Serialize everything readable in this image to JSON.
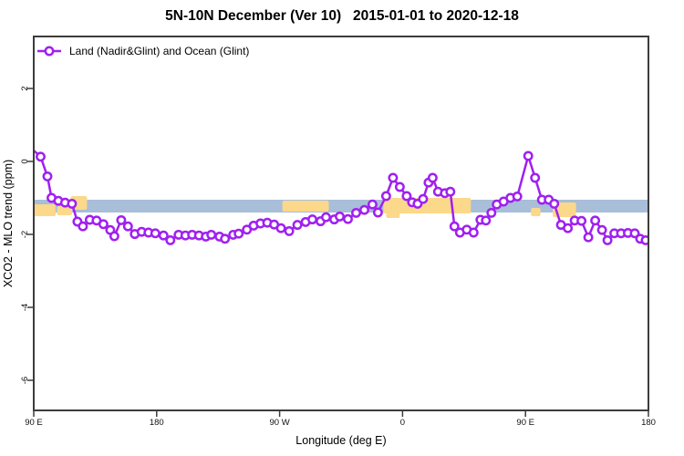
{
  "title": "5N-10N December (Ver 10)   2015-01-01 to 2020-12-18",
  "legend": {
    "label": "Land (Nadir&Glint) and Ocean (Glint)"
  },
  "colors": {
    "line": "#A020F0",
    "marker_fill": "#FFFFFF",
    "ocean_band": "#A8BED9",
    "land": "#FBD88A",
    "frame": "#3C3C3C",
    "tick_text": "#111111"
  },
  "chart_data": {
    "type": "line",
    "title": "5N-10N December (Ver 10)   2015-01-01 to 2020-12-18",
    "xlabel": "Longitude (deg E)",
    "ylabel": "XCO2 - MLO trend (ppm)",
    "xlim": [
      90,
      540
    ],
    "ylim": [
      -6.825,
      3.425
    ],
    "grid": false,
    "legend_position": "top-left",
    "x_ticks": [
      {
        "value": 90,
        "label": "90 E"
      },
      {
        "value": 180,
        "label": "180"
      },
      {
        "value": 270,
        "label": "90 W"
      },
      {
        "value": 360,
        "label": "0"
      },
      {
        "value": 450,
        "label": "90 E"
      },
      {
        "value": 540,
        "label": "180"
      }
    ],
    "y_ticks": [
      {
        "value": 2,
        "label": "2"
      },
      {
        "value": 0,
        "label": "0"
      },
      {
        "value": -2,
        "label": "-2"
      },
      {
        "value": -4,
        "label": "-4"
      },
      {
        "value": -6,
        "label": "-6"
      }
    ],
    "map_strip": {
      "ocean_y_range": [
        -1.05,
        -1.4
      ],
      "land_segments": [
        {
          "lon": [
            90,
            106
          ],
          "y": [
            -1.175,
            -1.5
          ]
        },
        {
          "lon": [
            107,
            118
          ],
          "y": [
            -1.225,
            -1.475
          ]
        },
        {
          "lon": [
            117,
            129
          ],
          "y": [
            -0.95,
            -1.325
          ]
        },
        {
          "lon": [
            272,
            306
          ],
          "y": [
            -1.075,
            -1.375
          ]
        },
        {
          "lon": [
            346,
            410
          ],
          "y": [
            -1.0,
            -1.425
          ]
        },
        {
          "lon": [
            348,
            358
          ],
          "y": [
            -1.4,
            -1.55
          ]
        },
        {
          "lon": [
            454,
            461
          ],
          "y": [
            -1.275,
            -1.5
          ]
        },
        {
          "lon": [
            470,
            487
          ],
          "y": [
            -1.125,
            -1.525
          ]
        }
      ]
    },
    "series": [
      {
        "name": "Land (Nadir&Glint) and Ocean (Glint)",
        "marker": "open-circle",
        "x": [
          90,
          95,
          100,
          103,
          108,
          113,
          118,
          122,
          126,
          131,
          136,
          141,
          146,
          149,
          154,
          159,
          164,
          169,
          174,
          179,
          185,
          190,
          196,
          201,
          206,
          211,
          216,
          220,
          226,
          230,
          236,
          240,
          246,
          251,
          256,
          261,
          266,
          271,
          277,
          283,
          289,
          294,
          300,
          304,
          310,
          314,
          320,
          326,
          332,
          338,
          342,
          348,
          353,
          358,
          363,
          367,
          371,
          375,
          379,
          382,
          386,
          391,
          395,
          398,
          402,
          407,
          412,
          417,
          421,
          425,
          429,
          434,
          439,
          444,
          452,
          457,
          462,
          467,
          471,
          476,
          481,
          486,
          491,
          496,
          501,
          506,
          510,
          515,
          520,
          525,
          530,
          534,
          538
        ],
        "y": [
          0.3,
          0.13,
          -0.41,
          -1.0,
          -1.08,
          -1.13,
          -1.16,
          -1.65,
          -1.78,
          -1.6,
          -1.62,
          -1.72,
          -1.88,
          -2.05,
          -1.61,
          -1.78,
          -1.99,
          -1.93,
          -1.95,
          -1.97,
          -2.03,
          -2.16,
          -2.01,
          -2.03,
          -2.01,
          -2.03,
          -2.06,
          -2.01,
          -2.06,
          -2.12,
          -2.01,
          -1.98,
          -1.87,
          -1.76,
          -1.7,
          -1.68,
          -1.73,
          -1.83,
          -1.91,
          -1.74,
          -1.66,
          -1.59,
          -1.64,
          -1.53,
          -1.59,
          -1.51,
          -1.58,
          -1.41,
          -1.33,
          -1.18,
          -1.4,
          -0.95,
          -0.45,
          -0.7,
          -0.95,
          -1.12,
          -1.16,
          -1.03,
          -0.58,
          -0.45,
          -0.83,
          -0.87,
          -0.83,
          -1.78,
          -1.95,
          -1.87,
          -1.95,
          -1.6,
          -1.62,
          -1.41,
          -1.18,
          -1.1,
          -1.0,
          -0.96,
          0.15,
          -0.45,
          -1.05,
          -1.05,
          -1.16,
          -1.74,
          -1.83,
          -1.62,
          -1.63,
          -2.08,
          -1.62,
          -1.88,
          -2.16,
          -1.97,
          -1.97,
          -1.96,
          -1.97,
          -2.12,
          -2.16
        ]
      }
    ]
  }
}
